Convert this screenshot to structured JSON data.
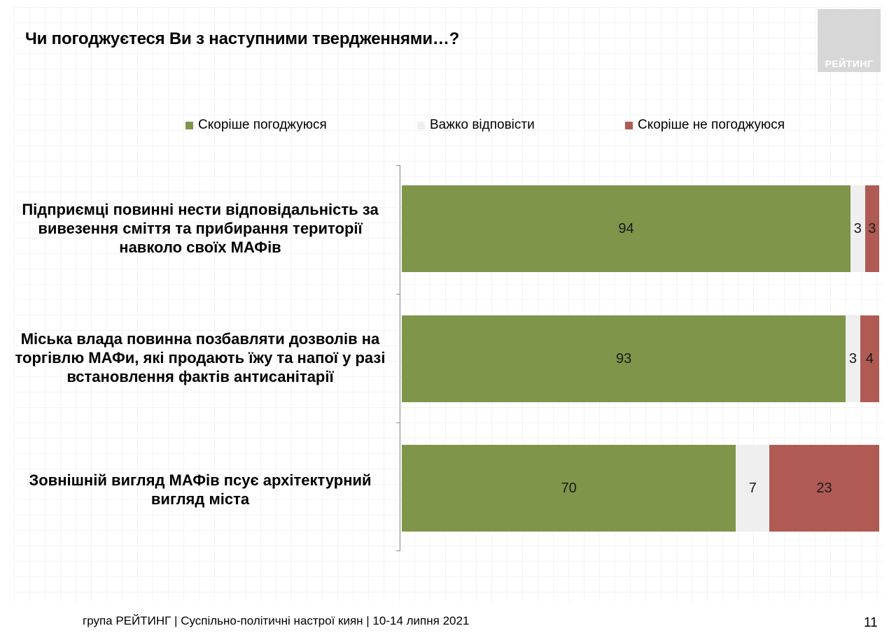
{
  "title": "Чи погоджуєтеся Ви з наступними твердженнями…?",
  "logo_text": "РЕЙТИНГ",
  "colors": {
    "agree": "#7f954a",
    "hard": "#efefef",
    "disagree": "#b05a54",
    "logo": "#d7d7d7"
  },
  "legend": [
    {
      "label": "Скоріше погоджуюся",
      "color": "#7f954a"
    },
    {
      "label": "Важко відповісти",
      "color": "#efefef"
    },
    {
      "label": "Скоріше не погоджуюся",
      "color": "#b05a54"
    }
  ],
  "chart_data": {
    "type": "bar",
    "orientation": "horizontal",
    "stacked": true,
    "categories": [
      "Підприємці повинні нести відповідальність за вивезення сміття та прибирання території навколо своїх МАФів",
      "Міська влада повинна позбавляти дозволів на торгівлю МАФи, які продають їжу та напої у разі встановлення фактів антисанітарії",
      "Зовнішній вигляд МАФів псує архітектурний вигляд міста"
    ],
    "series": [
      {
        "name": "Скоріше погоджуюся",
        "values": [
          94,
          93,
          70
        ]
      },
      {
        "name": "Важко відповісти",
        "values": [
          3,
          3,
          7
        ]
      },
      {
        "name": "Скоріше не погоджуюся",
        "values": [
          3,
          4,
          23
        ]
      }
    ],
    "xlim": [
      0,
      100
    ]
  },
  "footer": "група РЕЙТИНГ | Суспільно-політичні настрої киян |  10-14 липня 2021",
  "page_number": "11"
}
